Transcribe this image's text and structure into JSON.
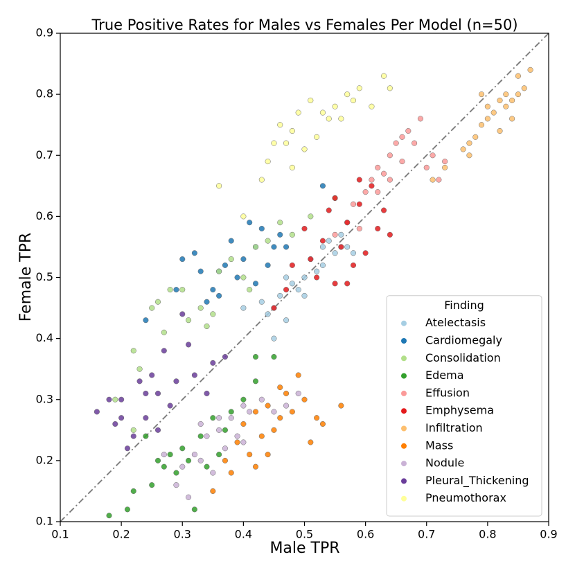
{
  "chart_data": {
    "type": "scatter",
    "title": "True Positive Rates for Males vs Females Per Model (n=50)",
    "x_label": "Male TPR",
    "y_label": "Female TPR",
    "xlim": [
      0.1,
      0.9
    ],
    "ylim": [
      0.1,
      0.9
    ],
    "xticks": [
      0.1,
      0.2,
      0.3,
      0.4,
      0.5,
      0.6,
      0.7,
      0.8,
      0.9
    ],
    "yticks": [
      0.1,
      0.2,
      0.3,
      0.4,
      0.5,
      0.6,
      0.7,
      0.8,
      0.9
    ],
    "legend_title": "Finding",
    "legend": "lower right",
    "series": [
      {
        "name": "Atelectasis",
        "color": "#a6cee3",
        "x": [
          0.45,
          0.44,
          0.46,
          0.48,
          0.5,
          0.49,
          0.52,
          0.53,
          0.55,
          0.56,
          0.57,
          0.58,
          0.47,
          0.43,
          0.51,
          0.54,
          0.56,
          0.45,
          0.5,
          0.53,
          0.4,
          0.47
        ],
        "values": [
          0.4,
          0.44,
          0.47,
          0.49,
          0.5,
          0.48,
          0.51,
          0.52,
          0.54,
          0.55,
          0.55,
          0.54,
          0.5,
          0.46,
          0.53,
          0.56,
          0.57,
          0.45,
          0.47,
          0.55,
          0.45,
          0.43
        ]
      },
      {
        "name": "Cardiomegaly",
        "color": "#1f78b4",
        "x": [
          0.24,
          0.29,
          0.3,
          0.32,
          0.33,
          0.35,
          0.36,
          0.37,
          0.38,
          0.39,
          0.4,
          0.41,
          0.42,
          0.43,
          0.44,
          0.45,
          0.46,
          0.47,
          0.34,
          0.53,
          0.36,
          0.42
        ],
        "values": [
          0.43,
          0.48,
          0.53,
          0.54,
          0.51,
          0.48,
          0.47,
          0.52,
          0.56,
          0.5,
          0.53,
          0.59,
          0.55,
          0.58,
          0.52,
          0.55,
          0.57,
          0.55,
          0.46,
          0.65,
          0.51,
          0.49
        ]
      },
      {
        "name": "Consolidation",
        "color": "#b2df8a",
        "x": [
          0.19,
          0.22,
          0.23,
          0.25,
          0.26,
          0.28,
          0.3,
          0.31,
          0.33,
          0.34,
          0.35,
          0.36,
          0.38,
          0.4,
          0.42,
          0.44,
          0.46,
          0.48,
          0.51,
          0.55,
          0.27,
          0.22,
          0.41
        ],
        "values": [
          0.3,
          0.38,
          0.35,
          0.45,
          0.46,
          0.48,
          0.48,
          0.43,
          0.45,
          0.42,
          0.44,
          0.51,
          0.53,
          0.5,
          0.55,
          0.56,
          0.59,
          0.57,
          0.6,
          0.63,
          0.41,
          0.25,
          0.48
        ]
      },
      {
        "name": "Edema",
        "color": "#33a02c",
        "x": [
          0.18,
          0.21,
          0.22,
          0.25,
          0.26,
          0.27,
          0.28,
          0.29,
          0.3,
          0.31,
          0.32,
          0.33,
          0.35,
          0.37,
          0.38,
          0.4,
          0.42,
          0.45,
          0.42,
          0.24,
          0.34,
          0.36
        ],
        "values": [
          0.11,
          0.12,
          0.15,
          0.16,
          0.2,
          0.19,
          0.21,
          0.18,
          0.22,
          0.2,
          0.12,
          0.24,
          0.27,
          0.25,
          0.28,
          0.3,
          0.33,
          0.37,
          0.37,
          0.24,
          0.19,
          0.21
        ]
      },
      {
        "name": "Effusion",
        "color": "#fb9a99",
        "x": [
          0.55,
          0.57,
          0.58,
          0.6,
          0.61,
          0.62,
          0.63,
          0.64,
          0.65,
          0.66,
          0.67,
          0.68,
          0.69,
          0.7,
          0.71,
          0.72,
          0.73,
          0.62,
          0.66,
          0.59,
          0.64
        ],
        "values": [
          0.57,
          0.59,
          0.62,
          0.64,
          0.66,
          0.68,
          0.67,
          0.7,
          0.72,
          0.73,
          0.74,
          0.72,
          0.76,
          0.68,
          0.7,
          0.66,
          0.69,
          0.64,
          0.69,
          0.58,
          0.66
        ]
      },
      {
        "name": "Emphysema",
        "color": "#e31a1c",
        "x": [
          0.45,
          0.47,
          0.48,
          0.5,
          0.52,
          0.53,
          0.54,
          0.55,
          0.56,
          0.57,
          0.58,
          0.59,
          0.6,
          0.61,
          0.62,
          0.63,
          0.64,
          0.57,
          0.59,
          0.51,
          0.55
        ],
        "values": [
          0.45,
          0.48,
          0.52,
          0.58,
          0.5,
          0.56,
          0.61,
          0.49,
          0.55,
          0.59,
          0.52,
          0.62,
          0.54,
          0.65,
          0.58,
          0.61,
          0.57,
          0.49,
          0.66,
          0.53,
          0.63
        ]
      },
      {
        "name": "Infiltration",
        "color": "#fdbf6f",
        "x": [
          0.71,
          0.73,
          0.76,
          0.77,
          0.78,
          0.79,
          0.8,
          0.8,
          0.81,
          0.82,
          0.83,
          0.83,
          0.84,
          0.85,
          0.85,
          0.86,
          0.87,
          0.79,
          0.82,
          0.84,
          0.77
        ],
        "values": [
          0.66,
          0.68,
          0.71,
          0.72,
          0.73,
          0.75,
          0.76,
          0.78,
          0.77,
          0.79,
          0.78,
          0.8,
          0.79,
          0.8,
          0.83,
          0.81,
          0.84,
          0.8,
          0.74,
          0.76,
          0.7
        ]
      },
      {
        "name": "Mass",
        "color": "#ff7f00",
        "x": [
          0.35,
          0.37,
          0.39,
          0.4,
          0.41,
          0.42,
          0.43,
          0.44,
          0.45,
          0.46,
          0.47,
          0.48,
          0.49,
          0.5,
          0.51,
          0.52,
          0.56,
          0.44,
          0.38,
          0.46,
          0.53,
          0.42
        ],
        "values": [
          0.15,
          0.2,
          0.23,
          0.26,
          0.21,
          0.28,
          0.24,
          0.29,
          0.25,
          0.27,
          0.31,
          0.28,
          0.34,
          0.3,
          0.23,
          0.27,
          0.29,
          0.21,
          0.18,
          0.32,
          0.26,
          0.19
        ]
      },
      {
        "name": "Nodule",
        "color": "#cab2d6",
        "x": [
          0.27,
          0.29,
          0.3,
          0.31,
          0.32,
          0.33,
          0.34,
          0.35,
          0.36,
          0.37,
          0.38,
          0.39,
          0.4,
          0.41,
          0.43,
          0.45,
          0.47,
          0.49,
          0.36,
          0.33,
          0.4
        ],
        "values": [
          0.21,
          0.16,
          0.19,
          0.14,
          0.21,
          0.2,
          0.24,
          0.18,
          0.25,
          0.22,
          0.27,
          0.24,
          0.29,
          0.28,
          0.3,
          0.28,
          0.29,
          0.31,
          0.27,
          0.26,
          0.23
        ]
      },
      {
        "name": "Pleural_Thickening",
        "color": "#6a3d9a",
        "x": [
          0.16,
          0.18,
          0.19,
          0.2,
          0.21,
          0.22,
          0.23,
          0.24,
          0.25,
          0.26,
          0.27,
          0.28,
          0.29,
          0.3,
          0.31,
          0.32,
          0.34,
          0.35,
          0.37,
          0.2,
          0.24,
          0.26
        ],
        "values": [
          0.28,
          0.3,
          0.26,
          0.3,
          0.22,
          0.24,
          0.33,
          0.31,
          0.34,
          0.31,
          0.38,
          0.29,
          0.33,
          0.44,
          0.39,
          0.34,
          0.31,
          0.36,
          0.37,
          0.27,
          0.27,
          0.25
        ]
      },
      {
        "name": "Pneumothorax",
        "color": "#ffff99",
        "x": [
          0.36,
          0.4,
          0.43,
          0.44,
          0.45,
          0.46,
          0.47,
          0.48,
          0.49,
          0.5,
          0.51,
          0.52,
          0.53,
          0.54,
          0.55,
          0.56,
          0.57,
          0.58,
          0.59,
          0.63,
          0.64,
          0.48,
          0.61
        ],
        "values": [
          0.65,
          0.6,
          0.66,
          0.69,
          0.72,
          0.75,
          0.72,
          0.74,
          0.77,
          0.71,
          0.79,
          0.73,
          0.77,
          0.76,
          0.78,
          0.76,
          0.8,
          0.79,
          0.81,
          0.83,
          0.81,
          0.68,
          0.78
        ]
      }
    ]
  }
}
